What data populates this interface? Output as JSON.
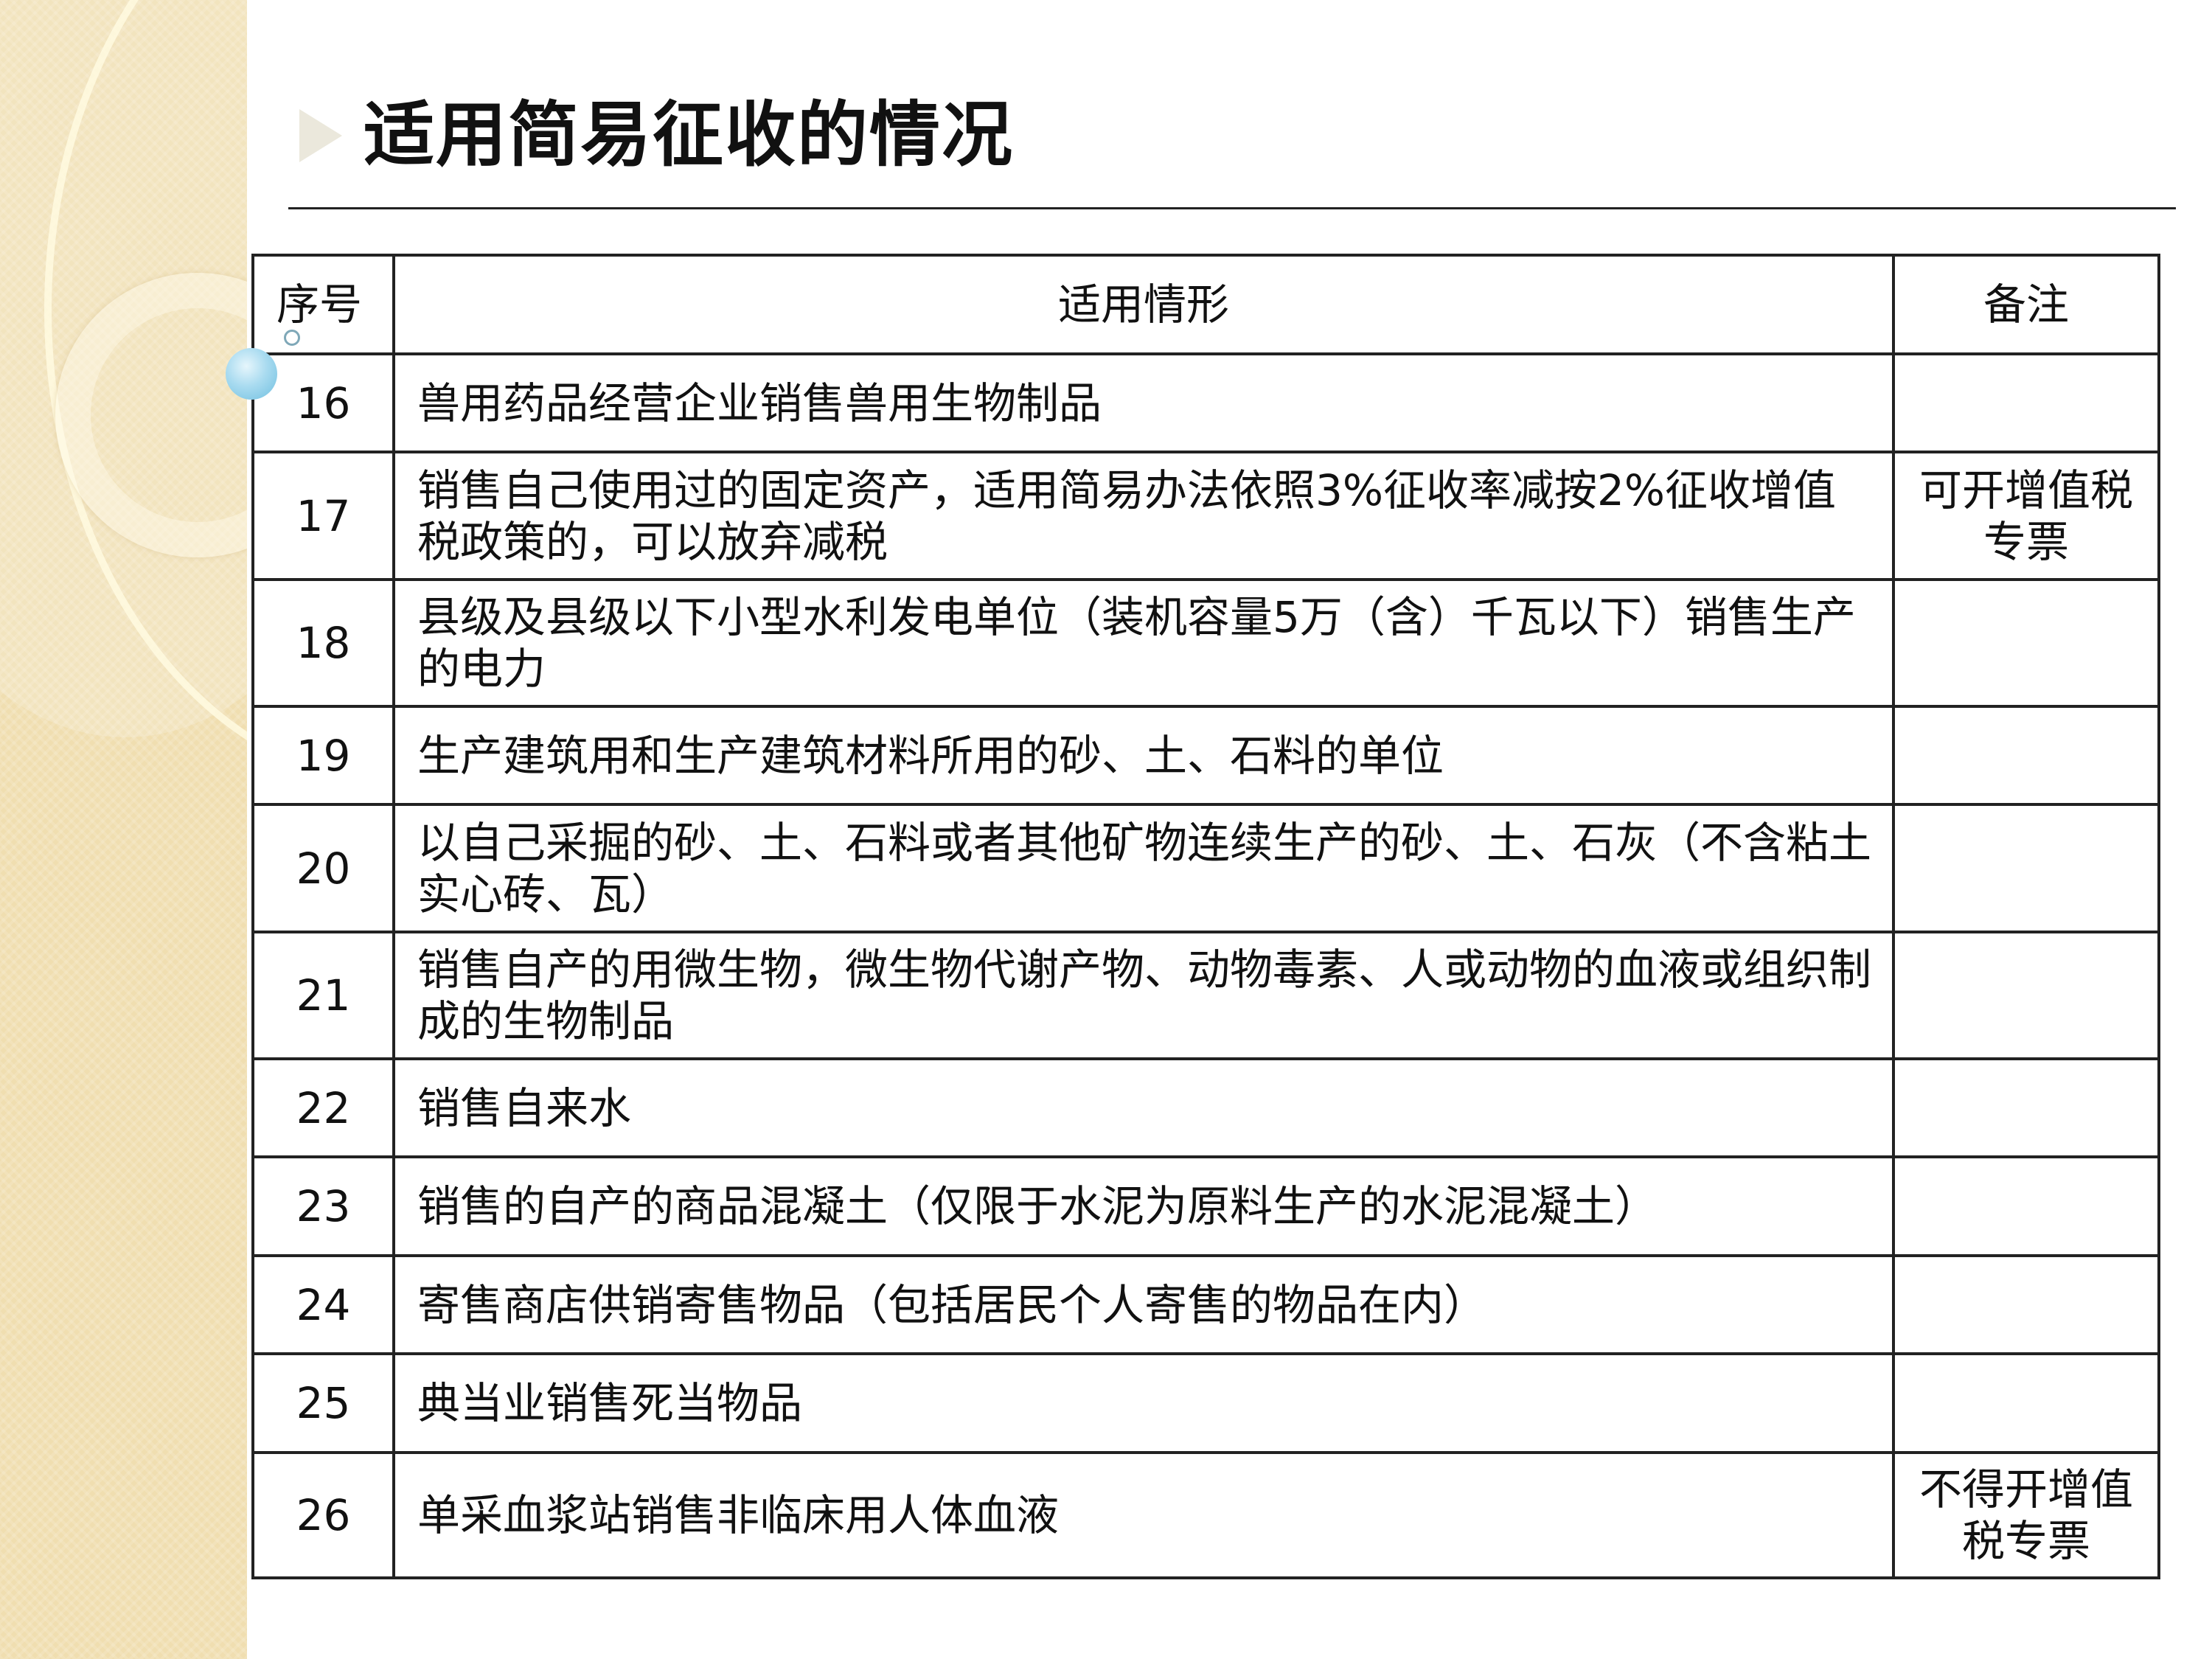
{
  "title": "适用简易征收的情况",
  "table": {
    "headers": [
      "序号",
      "适用情形",
      "备注"
    ],
    "rows": [
      {
        "no": "16",
        "case": "兽用药品经营企业销售兽用生物制品",
        "note": ""
      },
      {
        "no": "17",
        "case": "销售自己使用过的固定资产，适用简易办法依照3%征收率减按2%征收增值税政策的，可以放弃减税",
        "note": "可开增值税专票"
      },
      {
        "no": "18",
        "case": "县级及县级以下小型水利发电单位（装机容量5万（含）千瓦以下）销售生产的电力",
        "note": ""
      },
      {
        "no": "19",
        "case": "生产建筑用和生产建筑材料所用的砂、土、石料的单位",
        "note": ""
      },
      {
        "no": "20",
        "case": "以自己采掘的砂、土、石料或者其他矿物连续生产的砂、土、石灰（不含粘土实心砖、瓦）",
        "note": ""
      },
      {
        "no": "21",
        "case": "销售自产的用微生物，微生物代谢产物、动物毒素、人或动物的血液或组织制成的生物制品",
        "note": ""
      },
      {
        "no": "22",
        "case": "销售自来水",
        "note": ""
      },
      {
        "no": "23",
        "case": "销售的自产的商品混凝土（仅限于水泥为原料生产的水泥混凝土）",
        "note": ""
      },
      {
        "no": "24",
        "case": "寄售商店供销寄售物品（包括居民个人寄售的物品在内）",
        "note": ""
      },
      {
        "no": "25",
        "case": "典当业销售死当物品",
        "note": ""
      },
      {
        "no": "26",
        "case": "单采血浆站销售非临床用人体血液",
        "note": "不得开增值税专票"
      }
    ]
  }
}
